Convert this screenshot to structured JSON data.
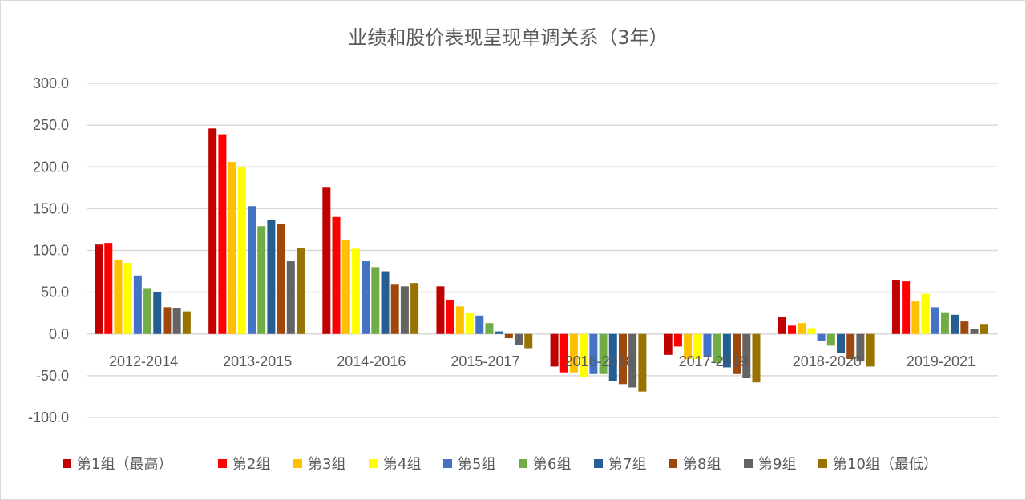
{
  "chart_data": {
    "type": "bar",
    "title": "业绩和股价表现呈现单调关系（3年）",
    "xlabel": "",
    "ylabel": "",
    "ylim": [
      -100,
      300
    ],
    "yticks": [
      "300.0",
      "250.0",
      "200.0",
      "150.0",
      "100.0",
      "50.0",
      "0.0",
      "-50.0",
      "-100.0"
    ],
    "ytick_values": [
      300,
      250,
      200,
      150,
      100,
      50,
      0,
      -50,
      -100
    ],
    "grid": true,
    "legend_position": "bottom",
    "categories": [
      "2012-2014",
      "2013-2015",
      "2014-2016",
      "2015-2017",
      "2016-2018",
      "2017-2019",
      "2018-2020",
      "2019-2021"
    ],
    "series": [
      {
        "name": "第1组（最高）",
        "color": "#C00000",
        "values": [
          107,
          246,
          176,
          57,
          -39,
          -25,
          20,
          64
        ]
      },
      {
        "name": "第2组",
        "color": "#FF0000",
        "values": [
          109,
          239,
          140,
          41,
          -46,
          -15,
          10,
          63
        ]
      },
      {
        "name": "第3组",
        "color": "#FFC000",
        "values": [
          89,
          206,
          112,
          33,
          -46,
          -30,
          13,
          39
        ]
      },
      {
        "name": "第4组",
        "color": "#FFFF00",
        "values": [
          85,
          200,
          102,
          25,
          -51,
          -30,
          7,
          48
        ]
      },
      {
        "name": "第5组",
        "color": "#4472C4",
        "values": [
          70,
          153,
          87,
          22,
          -48,
          -28,
          -8,
          32
        ]
      },
      {
        "name": "第6组",
        "color": "#70AD47",
        "values": [
          54,
          129,
          80,
          13,
          -48,
          -35,
          -14,
          26
        ]
      },
      {
        "name": "第7组",
        "color": "#255E91",
        "values": [
          50,
          136,
          75,
          3,
          -56,
          -40,
          -23,
          23
        ]
      },
      {
        "name": "第8组",
        "color": "#9E480E",
        "values": [
          32,
          132,
          59,
          -5,
          -60,
          -48,
          -30,
          15
        ]
      },
      {
        "name": "第9组",
        "color": "#636363",
        "values": [
          31,
          87,
          57,
          -13,
          -64,
          -53,
          -33,
          6
        ]
      },
      {
        "name": "第10组（最低）",
        "color": "#997300",
        "values": [
          27,
          103,
          61,
          -17,
          -69,
          -58,
          -39,
          12
        ]
      }
    ]
  }
}
